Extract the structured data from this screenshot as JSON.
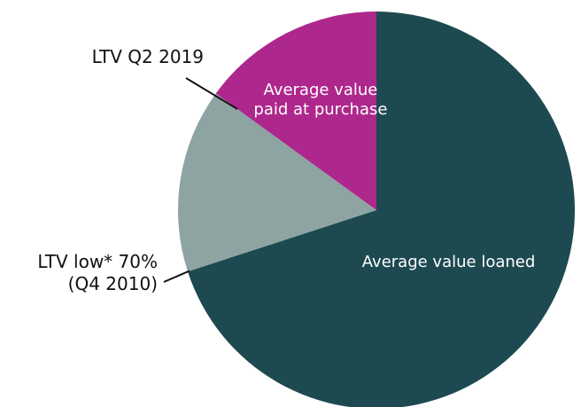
{
  "chart_data": {
    "type": "pie",
    "categories": [
      "Average value loaned",
      null,
      "Average value paid at purchase"
    ],
    "values": [
      70,
      15,
      15
    ],
    "colors": [
      "#1d4950",
      "#8ea4a3",
      "#ae278c"
    ],
    "annotations": [
      {
        "lines": [
          "LTV Q2 2019"
        ]
      },
      {
        "lines": [
          "LTV low* 70%",
          "(Q4 2010)"
        ]
      }
    ]
  }
}
